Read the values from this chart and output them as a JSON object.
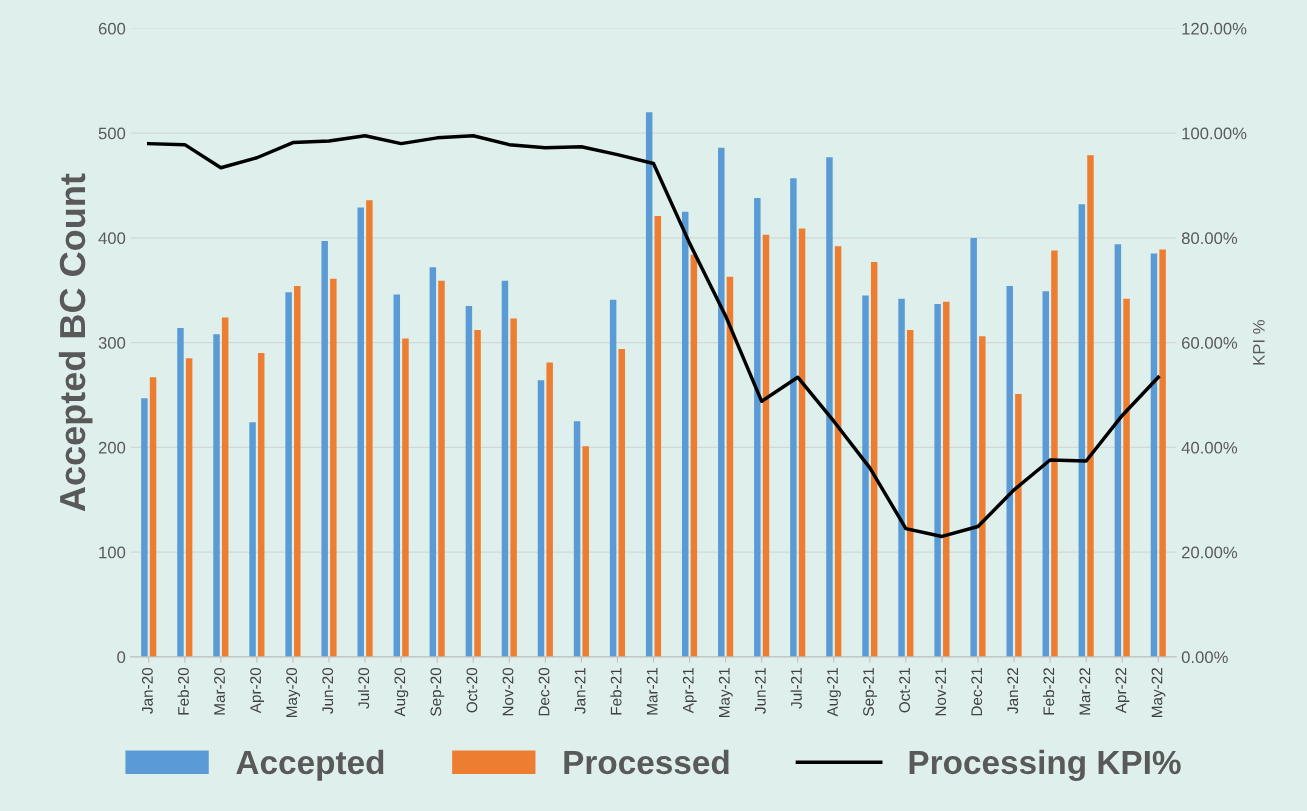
{
  "chart_data": {
    "type": "bar",
    "categories": [
      "Jan-20",
      "Feb-20",
      "Mar-20",
      "Apr-20",
      "May-20",
      "Jun-20",
      "Jul-20",
      "Aug-20",
      "Sep-20",
      "Oct-20",
      "Nov-20",
      "Dec-20",
      "Jan-21",
      "Feb-21",
      "Mar-21",
      "Apr-21",
      "May-21",
      "Jun-21",
      "Jul-21",
      "Aug-21",
      "Sep-21",
      "Oct-21",
      "Nov-21",
      "Dec-21",
      "Jan-22",
      "Feb-22",
      "Mar-22",
      "Apr-22",
      "May-22"
    ],
    "series": [
      {
        "name": "Accepted",
        "color": "#5b9bd5",
        "values": [
          247,
          314,
          308,
          224,
          348,
          397,
          429,
          346,
          372,
          335,
          359,
          264,
          225,
          341,
          520,
          425,
          486,
          438,
          457,
          477,
          345,
          342,
          337,
          400,
          354,
          349,
          432,
          394,
          385
        ]
      },
      {
        "name": "Processed",
        "color": "#ed7d31",
        "values": [
          267,
          285,
          324,
          290,
          354,
          361,
          436,
          304,
          359,
          312,
          323,
          281,
          201,
          294,
          421,
          384,
          363,
          403,
          409,
          392,
          377,
          312,
          339,
          306,
          251,
          388,
          479,
          342,
          389
        ]
      },
      {
        "name": "Processing KPI%",
        "type": "line",
        "axis": "y2",
        "color": "#000000",
        "values": [
          98.0,
          97.8,
          93.4,
          95.3,
          98.2,
          98.5,
          99.5,
          98.0,
          99.1,
          99.5,
          97.8,
          97.2,
          97.4,
          95.9,
          94.2,
          79.0,
          65.1,
          48.8,
          53.4,
          45.0,
          36.1,
          24.5,
          23.0,
          24.9,
          31.9,
          37.6,
          37.4,
          46.1,
          53.4
        ]
      }
    ],
    "ylabel": "Accepted BC Count",
    "y2label": "KPI %",
    "ylim": [
      0,
      600
    ],
    "yticks": [
      0,
      100,
      200,
      300,
      400,
      500,
      600
    ],
    "y2lim": [
      0,
      120
    ],
    "y2ticks": [
      {
        "value": 0,
        "label": "0.00%"
      },
      {
        "value": 20,
        "label": "20.00%"
      },
      {
        "value": 40,
        "label": "40.00%"
      },
      {
        "value": 60,
        "label": "60.00%"
      },
      {
        "value": 80,
        "label": "80.00%"
      },
      {
        "value": 100,
        "label": "100.00%"
      },
      {
        "value": 120,
        "label": "120.00%"
      }
    ],
    "grid": "y",
    "legend": "bottom",
    "marker": "none",
    "line_style": "solid"
  }
}
